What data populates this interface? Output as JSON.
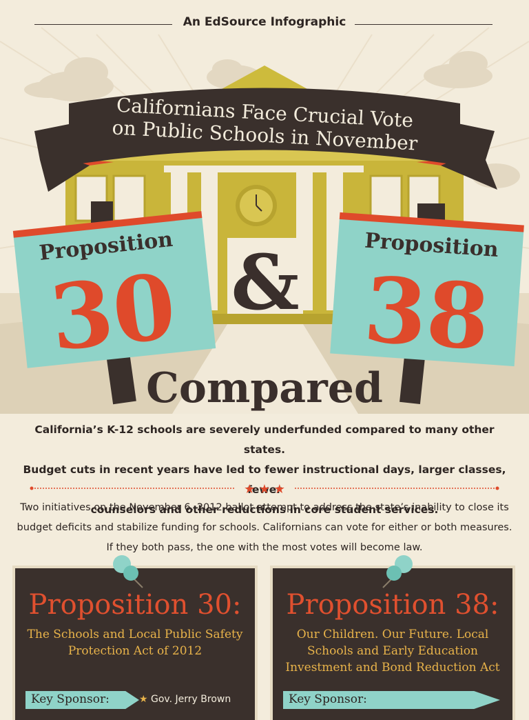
{
  "header": {
    "eyebrow": "An EdSource Infographic"
  },
  "banner": {
    "line1": "Californians Face Crucial Vote",
    "line2": "on Public Schools in November"
  },
  "signs": {
    "left": {
      "label": "Proposition",
      "number": "30"
    },
    "right": {
      "label": "Proposition",
      "number": "38"
    },
    "ampersand": "&"
  },
  "headline": "Compared",
  "intro": {
    "line1": "California’s K-12 schools are severely underfunded compared to many other states.",
    "line2": "Budget cuts in recent years have led to fewer instructional days, larger classes, fewer",
    "line3": "counselors and other reductions in core student services."
  },
  "body": {
    "line1": "Two initiatives on the November 6, 2012 ballot attempt to address the state’s inability to close its",
    "line2": "budget deficits and stabilize funding for schools. Californians can vote for either or both measures.",
    "line3": "If they both pass, the one with the most votes will become law."
  },
  "cards": [
    {
      "title": "Proposition 30:",
      "subtitle1": "The Schools and Local Public Safety",
      "subtitle2": "Protection Act of 2012",
      "subtitle3": "",
      "key_label": "Key Sponsor:",
      "sponsor": "Gov. Jerry Brown"
    },
    {
      "title": "Proposition 38:",
      "subtitle1": "Our Children. Our Future. Local",
      "subtitle2": "Schools and Early Education",
      "subtitle3": "Investment and Bond Reduction Act",
      "key_label": "Key Sponsor:",
      "sponsor": ""
    }
  ],
  "colors": {
    "accent": "#df4a2b",
    "teal": "#8fd3c8",
    "dark": "#3a302c",
    "gold": "#e8b34a",
    "paper": "#f3ecdc"
  }
}
